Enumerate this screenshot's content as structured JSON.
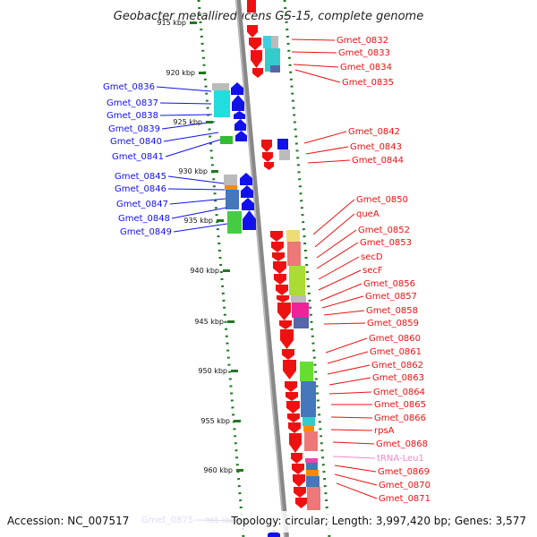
{
  "title": "Geobacter metallireducens GS-15, complete genome",
  "footer": {
    "accession": "Accession: NC_007517",
    "topology": "Topology: circular; Length: 3,997,420 bp; Genes: 3,577"
  },
  "colors": {
    "forward_strand": "#ee1111",
    "reverse_strand": "#1111ee",
    "trna": "#ee88cc",
    "scale_dots": "#227722",
    "backbone": "#888888"
  },
  "kbp_ticks": [
    "915 kbp",
    "920 kbp",
    "925 kbp",
    "930 kbp",
    "935 kbp",
    "940 kbp",
    "945 kbp",
    "950 kbp",
    "955 kbp",
    "960 kbp",
    "965 kbp"
  ],
  "left_genes": [
    "Gmet_0836",
    "Gmet_0837",
    "Gmet_0838",
    "Gmet_0839",
    "Gmet_0840",
    "Gmet_0841",
    "Gmet_0845",
    "Gmet_0846",
    "Gmet_0847",
    "Gmet_0848",
    "Gmet_0849",
    "Gmet_0875"
  ],
  "right_genes": [
    "Gmet_0832",
    "Gmet_0833",
    "Gmet_0834",
    "Gmet_0835",
    "Gmet_0842",
    "Gmet_0843",
    "Gmet_0844",
    "Gmet_0850",
    "queA",
    "Gmet_0852",
    "Gmet_0853",
    "secD",
    "secF",
    "Gmet_0856",
    "Gmet_0857",
    "Gmet_0858",
    "Gmet_0859",
    "Gmet_0860",
    "Gmet_0861",
    "Gmet_0862",
    "Gmet_0863",
    "Gmet_0864",
    "Gmet_0865",
    "Gmet_0866",
    "rpsA",
    "Gmet_0868",
    "tRNA-Leu1",
    "Gmet_0869",
    "Gmet_0870",
    "Gmet_0871"
  ]
}
